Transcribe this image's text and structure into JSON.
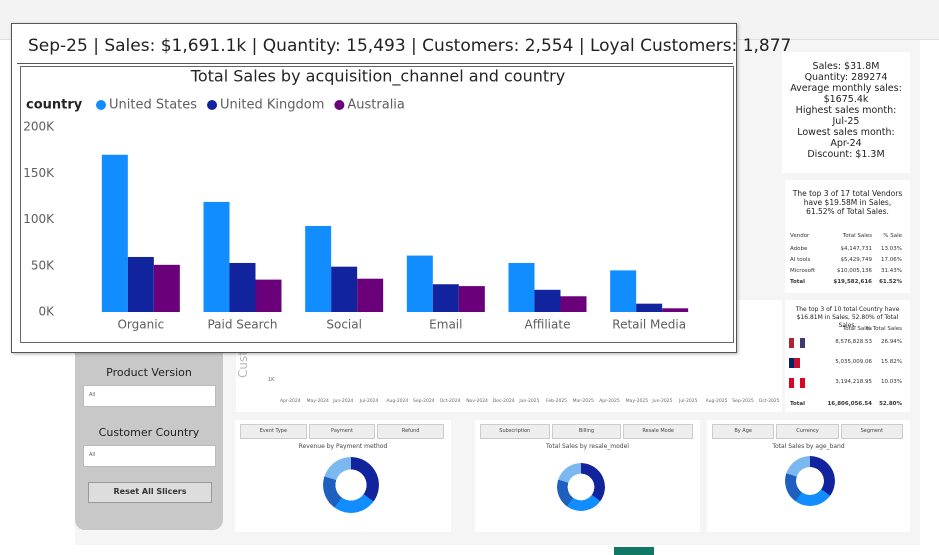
{
  "header": {
    "tooltip": "Sep-25 | Sales: $1,691.1k | Quantity: 15,493 | Customers: 2,554 | Loyal Customers: 1,877"
  },
  "chart_data": {
    "type": "bar",
    "title": "Total Sales by acquisition_channel and country",
    "legend_title": "country",
    "categories": [
      "Organic",
      "Paid Search",
      "Social",
      "Email",
      "Affiliate",
      "Retail Media"
    ],
    "series": [
      {
        "name": "United States",
        "color": "#118dff",
        "values": [
          170000,
          119000,
          93000,
          61000,
          53000,
          45000
        ]
      },
      {
        "name": "United Kingdom",
        "color": "#12239e",
        "values": [
          59500,
          53000,
          49000,
          30000,
          24000,
          9000
        ]
      },
      {
        "name": "Australia",
        "color": "#6b007b",
        "values": [
          51000,
          35000,
          36000,
          28000,
          17000,
          4000
        ]
      }
    ],
    "ylim": [
      0,
      200000
    ],
    "yticks": [
      {
        "value": 0,
        "label": "0K"
      },
      {
        "value": 50000,
        "label": "50K"
      },
      {
        "value": 100000,
        "label": "100K"
      },
      {
        "value": 150000,
        "label": "150K"
      },
      {
        "value": 200000,
        "label": "200K"
      }
    ],
    "grid": false
  },
  "summary": {
    "lines": [
      "Sales: $31.8M",
      "Quantity: 289274",
      "Average monthly sales:",
      "$1675.4k",
      "Highest sales month:",
      "Jul-25",
      "Lowest sales month:",
      "Apr-24",
      "Discount: $1.3M"
    ]
  },
  "vendors": {
    "caption": "The top 3 of 17 total Vendors have $19.58M in Sales, 61.52% of Total Sales.",
    "columns": [
      "Vendor",
      "Total Sales",
      "% Sale"
    ],
    "rows": [
      [
        "Adobe",
        "$4,147,731",
        "13.03%"
      ],
      [
        "AI tools",
        "$5,429,749",
        "17.06%"
      ],
      [
        "Microsoft",
        "$10,005,136",
        "31.43%"
      ],
      [
        "Total",
        "$19,582,616",
        "61.52%"
      ]
    ]
  },
  "countries": {
    "caption": "The top 3 of 10 total Country have $16.81M in Sales, 52.80% of Total Sales.",
    "columns": [
      "Total Sales",
      "% Total Sales"
    ],
    "rows": [
      [
        "8,576,828.53",
        "26.94%"
      ],
      [
        "5,035,009.06",
        "15.82%"
      ],
      [
        "3,194,218.95",
        "10.03%"
      ]
    ],
    "total": [
      "Total",
      "16,806,056.54",
      "52.80%"
    ]
  },
  "trend": {
    "axis_title": "Custo",
    "y_label": "1K",
    "x_labels": [
      "Apr-2024",
      "May-2024",
      "Jun-2024",
      "Jul-2024",
      "Aug-2024",
      "Sep-2024",
      "Oct-2024",
      "Nov-2024",
      "Dec-2024",
      "Jan-2025",
      "Feb-2025",
      "Mar-2025",
      "Apr-2025",
      "May-2025",
      "Jun-2025",
      "Jul-2025",
      "Aug-2025",
      "Sep-2025",
      "Oct-2025"
    ]
  },
  "slicers": {
    "items": [
      {
        "label": "Product Version",
        "value": "All"
      },
      {
        "label": "Customer Country",
        "value": "All"
      }
    ],
    "reset": "Reset All Slicers"
  },
  "panels": [
    {
      "buttons": [
        "Event Type",
        "Payment",
        "Refund"
      ],
      "title": "Revenue by Payment method"
    },
    {
      "buttons": [
        "Subscription",
        "Billing",
        "Resale Mode"
      ],
      "title": "Total Sales by resale_model"
    },
    {
      "buttons": [
        "By Age",
        "Currency",
        "Segment"
      ],
      "title": "Total Sales by age_band"
    }
  ]
}
